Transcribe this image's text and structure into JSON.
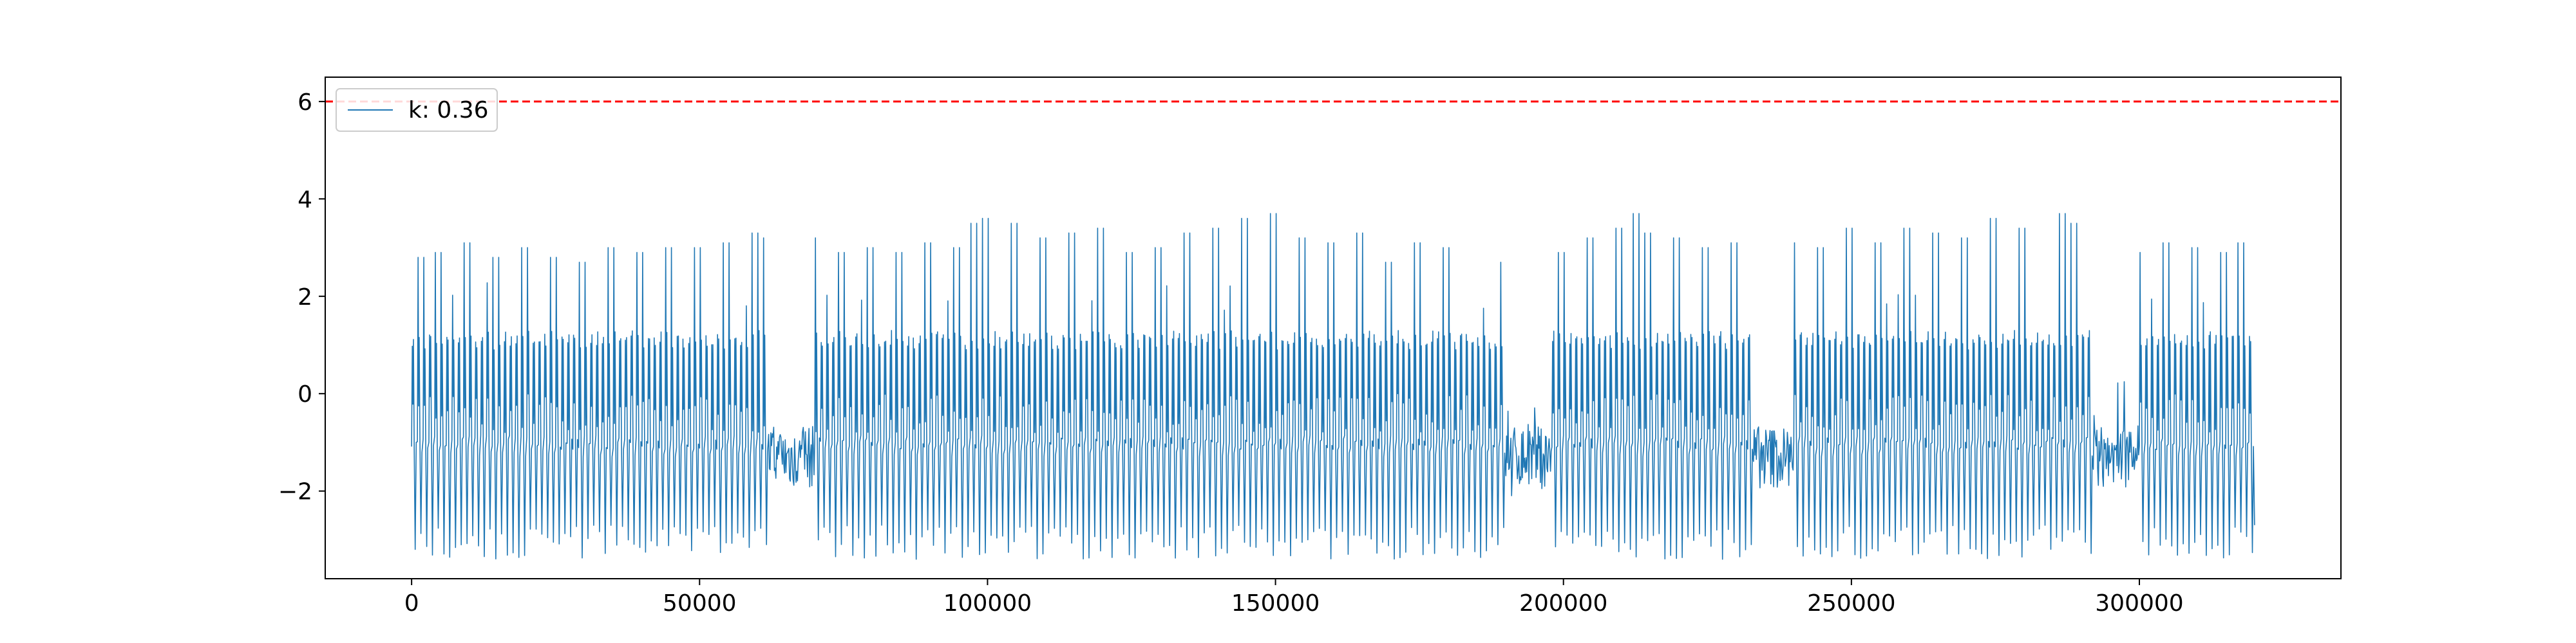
{
  "chart_data": {
    "type": "line",
    "title": "",
    "xlabel": "",
    "ylabel": "",
    "xlim": [
      -15000,
      335000
    ],
    "ylim": [
      -3.8,
      6.5
    ],
    "x_ticks": [
      0,
      50000,
      100000,
      150000,
      200000,
      250000,
      300000
    ],
    "x_tick_labels": [
      "0",
      "50000",
      "100000",
      "150000",
      "200000",
      "250000",
      "300000"
    ],
    "y_ticks": [
      -2,
      0,
      2,
      4,
      6
    ],
    "y_tick_labels": [
      "−2",
      "0",
      "2",
      "4",
      "6"
    ],
    "grid": false,
    "legend": {
      "placement": "top-left",
      "entries": [
        "k: 0.36"
      ]
    },
    "threshold": {
      "y": 6,
      "color": "#ff0000",
      "style": "dashed"
    },
    "series": [
      {
        "name": "k: 0.36",
        "color": "#1f77b4",
        "x_start": 0,
        "x_end": 320000,
        "approx_cycles": 320,
        "typical_peak": 1.1,
        "typical_trough": -1.1,
        "min": -3.4,
        "max": 3.7,
        "tall_spike_x": [
          2000,
          5000,
          10000,
          15000,
          20000,
          25000,
          30000,
          35000,
          40000,
          45000,
          50000,
          55000,
          60000,
          62000,
          70000,
          75000,
          80000,
          85000,
          90000,
          95000,
          98000,
          100000,
          105000,
          110000,
          115000,
          120000,
          125000,
          130000,
          135000,
          140000,
          145000,
          150000,
          155000,
          160000,
          165000,
          170000,
          175000,
          180000,
          190000,
          195000,
          200000,
          205000,
          210000,
          213000,
          215000,
          220000,
          225000,
          230000,
          240000,
          245000,
          250000,
          255000,
          260000,
          265000,
          270000,
          275000,
          280000,
          287000,
          289000,
          300000,
          305000,
          310000,
          315000,
          318000
        ],
        "tall_spike_y": [
          2.8,
          2.9,
          3.1,
          2.8,
          3.0,
          2.8,
          2.7,
          3.0,
          2.9,
          3.0,
          3.0,
          3.1,
          3.3,
          3.2,
          3.2,
          2.9,
          3.0,
          2.9,
          3.1,
          3.0,
          3.5,
          3.6,
          3.5,
          3.2,
          3.3,
          3.4,
          2.9,
          3.0,
          3.3,
          3.4,
          3.6,
          3.7,
          3.2,
          3.1,
          3.3,
          2.7,
          3.1,
          3.0,
          2.7,
          2.8,
          2.9,
          3.2,
          3.4,
          3.7,
          3.3,
          3.2,
          3.0,
          3.1,
          3.1,
          3.0,
          3.4,
          3.1,
          3.4,
          3.3,
          3.2,
          3.6,
          3.4,
          3.7,
          3.5,
          2.9,
          3.1,
          3.0,
          2.9,
          3.1
        ],
        "low_activity_segments": [
          [
            62000,
            70000
          ],
          [
            190000,
            198000
          ],
          [
            233000,
            240000
          ],
          [
            292000,
            300000
          ]
        ]
      }
    ]
  }
}
